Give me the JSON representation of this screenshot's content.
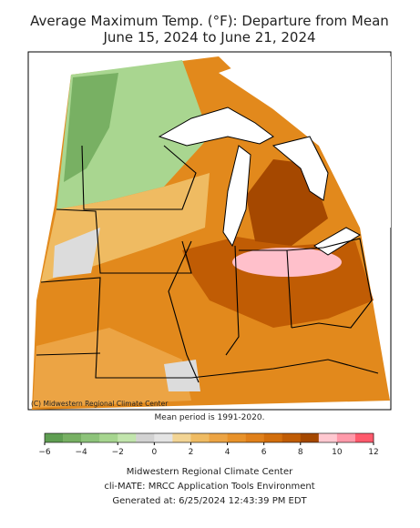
{
  "title": [
    "Average Maximum Temp. (°F): Departure from Mean",
    "June 15, 2024 to June 21, 2024"
  ],
  "map": {
    "copyright": "(C) Midwestern Regional Climate Center"
  },
  "note": "Mean period is 1991-2020.",
  "colorbar": {
    "lim": [
      -6,
      12
    ],
    "ticks": [
      {
        "value": -6,
        "label": "−6"
      },
      {
        "value": -4,
        "label": "−4"
      },
      {
        "value": -2,
        "label": "−2"
      },
      0,
      2,
      4,
      6,
      8,
      10,
      12
    ],
    "colors": [
      "#5f9e52",
      "#77b063",
      "#8dc37a",
      "#a6d58f",
      "#c2e5ad",
      "#d2d2d2",
      "#e4e4e4",
      "#f2d494",
      "#efbb62",
      "#eca444",
      "#e8922a",
      "#e0801a",
      "#d26e0c",
      "#c05c04",
      "#a54800",
      "#ffc8d0",
      "#ff9aaa",
      "#ff5a6c"
    ]
  },
  "footer": [
    "Midwestern Regional Climate Center",
    "cli-MATE: MRCC Application Tools Environment",
    "Generated at: 6/25/2024 12:43:39 PM EDT"
  ]
}
